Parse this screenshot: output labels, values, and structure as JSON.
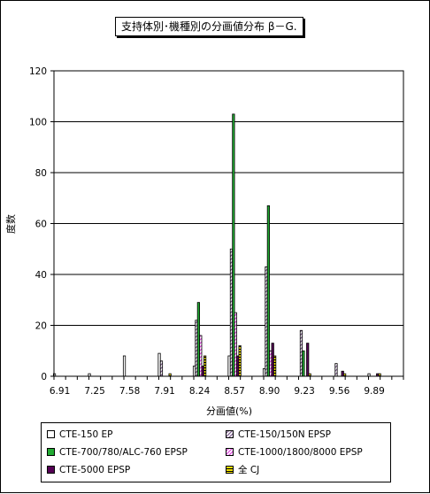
{
  "chart_data": {
    "type": "bar",
    "title": "支持体別･機種別の分画値分布 β－G.",
    "xlabel": "分画値(%)",
    "ylabel": "度数",
    "ylim": [
      0,
      120
    ],
    "yticks": [
      0,
      20,
      40,
      60,
      80,
      100,
      120
    ],
    "grid": "horizontal",
    "legend_position": "bottom",
    "categories": [
      "6.91",
      "7.02",
      "7.14",
      "7.25",
      "7.36",
      "7.47",
      "7.58",
      "7.69",
      "7.80",
      "7.91",
      "8.02",
      "8.13",
      "8.24",
      "8.35",
      "8.46",
      "8.57",
      "8.68",
      "8.79",
      "8.90",
      "9.01",
      "9.12",
      "9.23",
      "9.34",
      "9.45",
      "9.56",
      "9.67",
      "9.78",
      "9.89",
      "10.00",
      "10.11"
    ],
    "category_labels": [
      "6.91",
      "",
      "",
      "7.25",
      "",
      "",
      "7.58",
      "",
      "",
      "7.91",
      "",
      "",
      "8.24",
      "",
      "",
      "8.57",
      "",
      "",
      "8.90",
      "",
      "",
      "9.23",
      "",
      "",
      "9.56",
      "",
      "",
      "9.89",
      "",
      ""
    ],
    "series": [
      {
        "name": "CTE-150 EP",
        "values": [
          1,
          0,
          0,
          1,
          0,
          0,
          8,
          0,
          0,
          9,
          0,
          0,
          4,
          0,
          0,
          8,
          0,
          0,
          3,
          0,
          0,
          0,
          0,
          0,
          0,
          0,
          0,
          1,
          0,
          0
        ]
      },
      {
        "name": "CTE-150/150N EPSP",
        "values": [
          0,
          0,
          0,
          0,
          0,
          0,
          0,
          0,
          0,
          6,
          0,
          0,
          22,
          0,
          0,
          50,
          0,
          0,
          43,
          0,
          0,
          18,
          0,
          0,
          5,
          0,
          0,
          0,
          0,
          0
        ]
      },
      {
        "name": "CTE-700/780/ALC-760 EPSP",
        "values": [
          0,
          0,
          0,
          0,
          0,
          0,
          0,
          0,
          0,
          0,
          0,
          0,
          29,
          0,
          0,
          103,
          0,
          0,
          67,
          0,
          0,
          10,
          0,
          0,
          0,
          0,
          0,
          0,
          0,
          0
        ]
      },
      {
        "name": "CTE-1000/1800/8000 EPSP",
        "values": [
          0,
          0,
          0,
          0,
          0,
          0,
          0,
          0,
          0,
          0,
          0,
          0,
          16,
          0,
          0,
          25,
          0,
          0,
          10,
          0,
          0,
          0,
          0,
          0,
          0,
          0,
          0,
          0,
          0,
          0
        ]
      },
      {
        "name": "CTE-5000 EPSP",
        "values": [
          0,
          0,
          0,
          0,
          0,
          0,
          0,
          0,
          0,
          0,
          0,
          0,
          4,
          0,
          0,
          8,
          0,
          0,
          13,
          0,
          0,
          13,
          0,
          0,
          2,
          0,
          0,
          1,
          0,
          0
        ]
      },
      {
        "name": "全 CJ",
        "values": [
          0,
          0,
          0,
          0,
          0,
          0,
          0,
          0,
          0,
          1,
          0,
          0,
          8,
          0,
          0,
          12,
          0,
          0,
          8,
          0,
          0,
          1,
          0,
          0,
          1,
          0,
          0,
          1,
          0,
          0
        ]
      }
    ],
    "series_colors": [
      "#ffffff",
      "#ffffff",
      "#22aa33",
      "#ffffff",
      "#550055",
      "#ffffff"
    ],
    "series_patterns": [
      "plain",
      "diag-purple",
      "solid",
      "diag-magenta",
      "solid",
      "stripe-yellow"
    ]
  }
}
